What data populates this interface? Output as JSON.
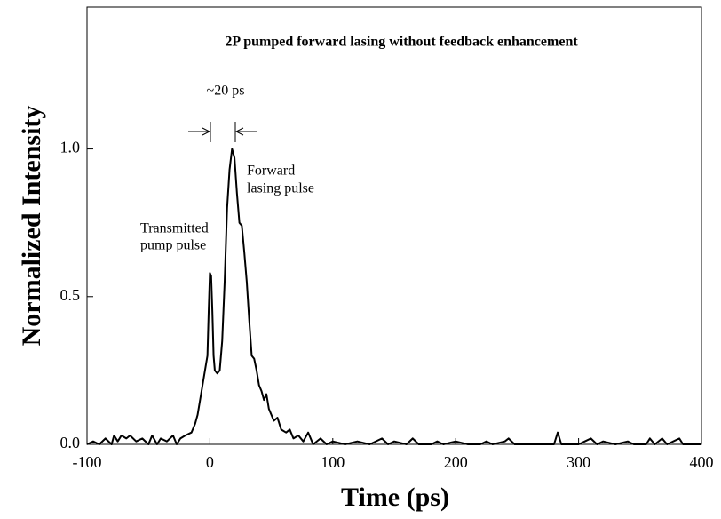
{
  "chart_data": {
    "type": "line",
    "title": "2P pumped forward lasing without feedback enhancement",
    "x_label": "Time (ps)",
    "y_label": "Normalized Intensity",
    "annotations": {
      "width": "~20 ps",
      "pump": [
        "Transmitted",
        "pump pulse"
      ],
      "lasing": [
        "Forward",
        "lasing pulse"
      ]
    },
    "xlim": [
      -100,
      400
    ],
    "xticks": [
      -100,
      0,
      100,
      200,
      300,
      400
    ],
    "ylim": [
      0,
      1.48
    ],
    "yticks": [
      {
        "value": 0,
        "label": "0.0"
      },
      {
        "value": 0.5,
        "label": "0.5"
      },
      {
        "value": 1.0,
        "label": "1.0"
      }
    ],
    "series": [
      {
        "color": "#000000",
        "x": [
          -100,
          -95,
          -90,
          -85,
          -80,
          -78,
          -75,
          -72,
          -68,
          -65,
          -60,
          -55,
          -50,
          -47,
          -43,
          -40,
          -35,
          -30,
          -27,
          -24,
          -20,
          -15,
          -12,
          -10,
          -8,
          -6,
          -4,
          -2,
          -1,
          0,
          1,
          2,
          3,
          4,
          6,
          8,
          10,
          12,
          14,
          16,
          18,
          20,
          22,
          24,
          26,
          28,
          30,
          32,
          34,
          36,
          38,
          40,
          42,
          44,
          46,
          48,
          50,
          52,
          55,
          58,
          62,
          65,
          68,
          72,
          76,
          80,
          84,
          90,
          95,
          100,
          110,
          120,
          130,
          140,
          145,
          150,
          160,
          165,
          170,
          180,
          185,
          190,
          200,
          210,
          220,
          225,
          230,
          240,
          243,
          248,
          260,
          270,
          280,
          283,
          286,
          300,
          305,
          310,
          315,
          320,
          330,
          340,
          345,
          355,
          358,
          362,
          368,
          372,
          382,
          385,
          395,
          400
        ],
        "values": [
          0.0,
          0.01,
          0.0,
          0.02,
          0.0,
          0.03,
          0.01,
          0.03,
          0.02,
          0.03,
          0.01,
          0.02,
          0.0,
          0.03,
          0.0,
          0.02,
          0.01,
          0.03,
          0.0,
          0.02,
          0.03,
          0.04,
          0.07,
          0.1,
          0.15,
          0.2,
          0.25,
          0.3,
          0.45,
          0.58,
          0.57,
          0.45,
          0.3,
          0.25,
          0.24,
          0.25,
          0.35,
          0.55,
          0.8,
          0.93,
          1.0,
          0.97,
          0.85,
          0.75,
          0.74,
          0.65,
          0.55,
          0.42,
          0.3,
          0.29,
          0.25,
          0.2,
          0.18,
          0.15,
          0.17,
          0.12,
          0.1,
          0.08,
          0.09,
          0.05,
          0.04,
          0.05,
          0.02,
          0.03,
          0.01,
          0.04,
          0.0,
          0.02,
          0.0,
          0.01,
          0.0,
          0.01,
          0.0,
          0.02,
          0.0,
          0.01,
          0.0,
          0.02,
          0.0,
          0.0,
          0.01,
          0.0,
          0.01,
          0.0,
          0.0,
          0.01,
          0.0,
          0.01,
          0.02,
          0.0,
          0.0,
          0.0,
          0.0,
          0.04,
          0.0,
          0.0,
          0.01,
          0.02,
          0.0,
          0.01,
          0.0,
          0.01,
          0.0,
          0.0,
          0.02,
          0.0,
          0.02,
          0.0,
          0.02,
          0.0,
          0.0,
          0.0
        ]
      }
    ]
  }
}
